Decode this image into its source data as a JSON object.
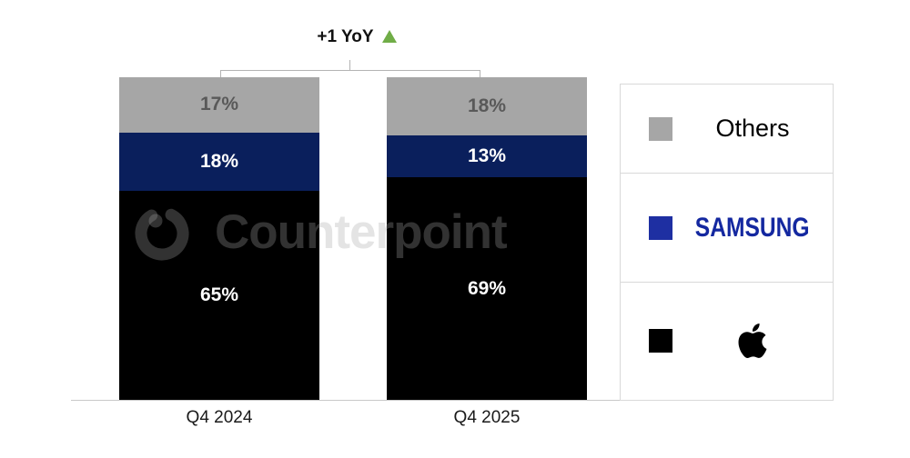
{
  "watermark": {
    "text": "Counterpoint"
  },
  "annotation": {
    "label": "+1 YoY",
    "triangle_color": "#70ad47"
  },
  "chart_data": {
    "type": "bar",
    "stacked": true,
    "categories": [
      "Q4 2024",
      "Q4 2025"
    ],
    "unit": "%",
    "series": [
      {
        "name": "Apple",
        "values": [
          65,
          69
        ],
        "color": "#000000",
        "label_color": "#ffffff"
      },
      {
        "name": "Samsung",
        "values": [
          18,
          13
        ],
        "color": "#0a1f5c",
        "label_color": "#ffffff"
      },
      {
        "name": "Others",
        "values": [
          17,
          18
        ],
        "color": "#a6a6a6",
        "label_color": "#595959"
      }
    ],
    "ylim": [
      0,
      100
    ],
    "grid": false,
    "legend_position": "right",
    "annotation": "+1 YoY increase for top segment"
  },
  "x_axis": {
    "labels": [
      "Q4 2024",
      "Q4 2025"
    ]
  },
  "legend": {
    "items": [
      {
        "label": "Others",
        "swatch_color": "#a6a6a6",
        "kind": "text"
      },
      {
        "label": "SAMSUNG",
        "swatch_color": "#1e2fa2",
        "kind": "wordmark",
        "text_color": "#1428a0"
      },
      {
        "label": "Apple",
        "swatch_color": "#000000",
        "kind": "apple-logo"
      }
    ]
  },
  "colors": {
    "apple": "#000000",
    "samsung_bar": "#0a1f5c",
    "others": "#a6a6a6",
    "annotation_green": "#70ad47",
    "axis_line": "#c9c9c9",
    "legend_border": "#d9d9d9"
  }
}
